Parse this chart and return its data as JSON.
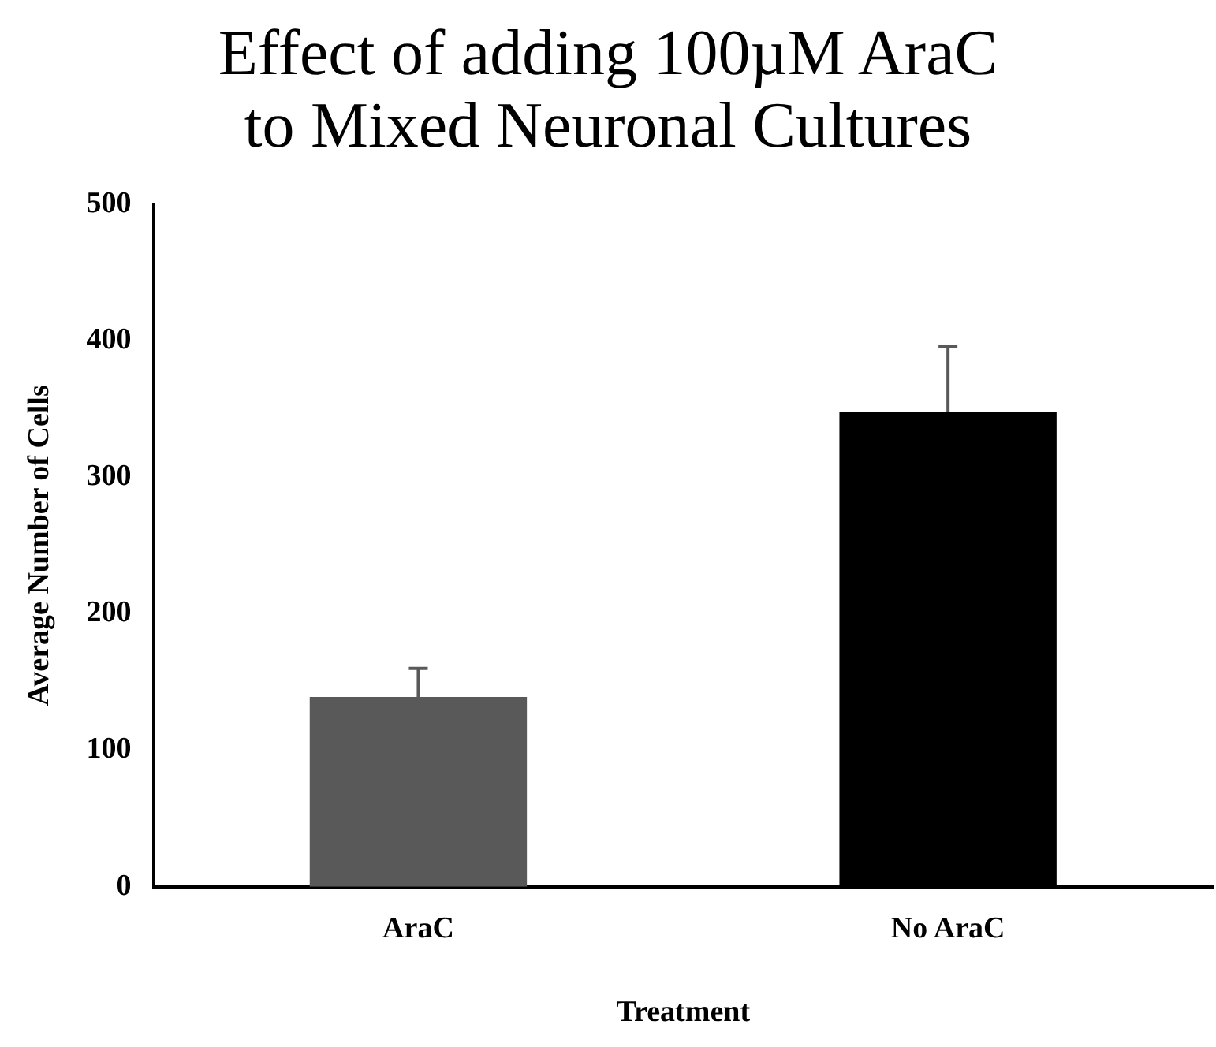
{
  "chart_data": {
    "type": "bar",
    "title": "Effect of adding 100µM AraC to Mixed Neuronal Cultures",
    "xlabel": "Treatment",
    "ylabel": "Average Number of Cells",
    "categories": [
      "AraC",
      "No AraC"
    ],
    "values": [
      139,
      348
    ],
    "colors": [
      "#595959",
      "#000000"
    ],
    "errors": [
      [
        139,
        160
      ],
      [
        348,
        396
      ]
    ],
    "ylim": [
      0,
      500
    ],
    "yticks": [
      0,
      100,
      200,
      300,
      400,
      500
    ]
  }
}
